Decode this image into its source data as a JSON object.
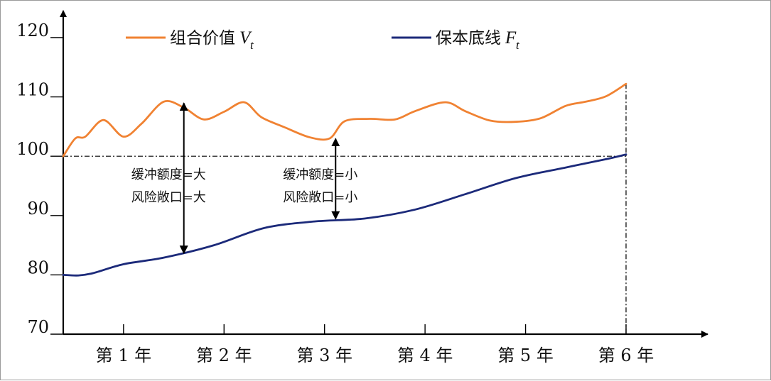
{
  "chart_data": {
    "type": "line",
    "title": "",
    "xlabel": "",
    "ylabel": "",
    "ylim": [
      70,
      122
    ],
    "xlim": [
      0,
      6
    ],
    "grid": false,
    "legend": "top",
    "x_ticks": [
      {
        "x": 0.6,
        "label": "第 1 年"
      },
      {
        "x": 1.6,
        "label": "第 2 年"
      },
      {
        "x": 2.6,
        "label": "第 3 年"
      },
      {
        "x": 3.6,
        "label": "第 4 年"
      },
      {
        "x": 4.6,
        "label": "第 5 年"
      },
      {
        "x": 5.6,
        "label": "第 6 年"
      }
    ],
    "y_ticks": [
      {
        "y": 70,
        "label": "70"
      },
      {
        "y": 80,
        "label": "80"
      },
      {
        "y": 90,
        "label": "90"
      },
      {
        "y": 100,
        "label": "100"
      },
      {
        "y": 110,
        "label": "110"
      },
      {
        "y": 120,
        "label": "120"
      }
    ],
    "reference_line": {
      "y": 100
    },
    "vertical_line": {
      "x": 5.6
    },
    "series": [
      {
        "key": "portfolio",
        "name": "组合价值",
        "symbol": "V",
        "subscript": "t",
        "color": "#f08232",
        "x": [
          0.0,
          0.12,
          0.22,
          0.4,
          0.6,
          0.78,
          1.0,
          1.2,
          1.4,
          1.6,
          1.8,
          1.97,
          2.2,
          2.45,
          2.65,
          2.8,
          3.05,
          3.3,
          3.5,
          3.8,
          4.0,
          4.25,
          4.5,
          4.75,
          5.0,
          5.2,
          5.4,
          5.6
        ],
        "y": [
          100,
          103,
          103.3,
          106.1,
          103.3,
          105.5,
          109.2,
          108.2,
          106.2,
          107.5,
          109.1,
          106.6,
          104.9,
          103.2,
          103.0,
          105.9,
          106.3,
          106.2,
          107.6,
          109.1,
          107.6,
          106.0,
          105.8,
          106.4,
          108.5,
          109.2,
          110.1,
          112.2
        ]
      },
      {
        "key": "floor",
        "name": "保本底线",
        "symbol": "F",
        "subscript": "t",
        "color": "#1c2a7a",
        "x": [
          0.0,
          0.15,
          0.3,
          0.6,
          1.0,
          1.5,
          2.0,
          2.5,
          3.0,
          3.5,
          4.0,
          4.5,
          5.0,
          5.4,
          5.6
        ],
        "y": [
          80,
          79.9,
          80.3,
          81.8,
          82.9,
          85.0,
          87.9,
          89.0,
          89.5,
          91.0,
          93.6,
          96.3,
          98.1,
          99.5,
          100.3
        ]
      }
    ],
    "annotations": [
      {
        "x": 1.2,
        "y_top": 109.2,
        "y_bottom": 83.4,
        "lines": [
          "缓冲额度=大",
          "风险敞口=大"
        ]
      },
      {
        "x": 2.71,
        "y_top": 103.2,
        "y_bottom": 89.2,
        "lines": [
          "缓冲额度=小",
          "风险敞口=小"
        ]
      }
    ]
  }
}
